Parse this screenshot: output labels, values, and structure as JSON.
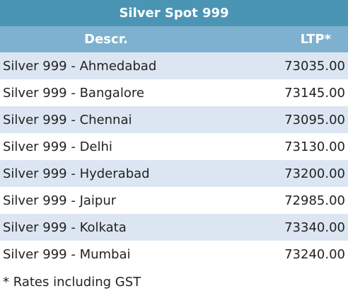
{
  "table": {
    "title": "Silver Spot 999",
    "columns": [
      "Descr.",
      "LTP*"
    ],
    "rows": [
      [
        "Silver 999 - Ahmedabad",
        "73035.00"
      ],
      [
        "Silver 999 - Bangalore",
        "73145.00"
      ],
      [
        "Silver 999 - Chennai",
        "73095.00"
      ],
      [
        "Silver 999 - Delhi",
        "73130.00"
      ],
      [
        "Silver 999 - Hyderabad",
        "73200.00"
      ],
      [
        "Silver 999 - Jaipur",
        "72985.00"
      ],
      [
        "Silver 999 - Kolkata",
        "73340.00"
      ],
      [
        "Silver 999 - Mumbai",
        "73240.00"
      ]
    ]
  },
  "footnote": "* Rates including GST"
}
